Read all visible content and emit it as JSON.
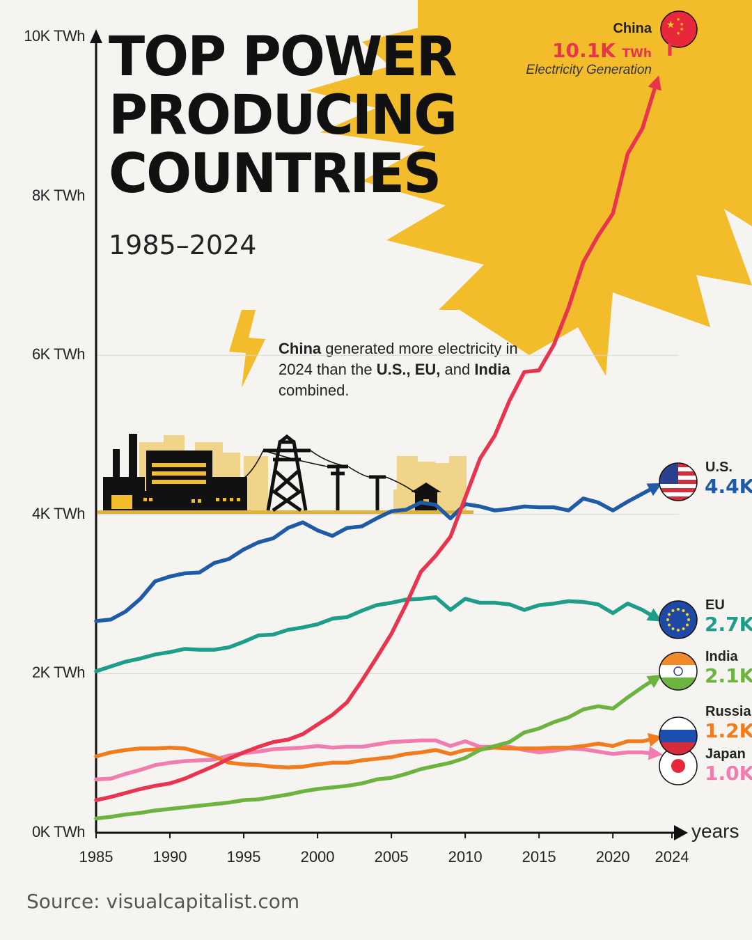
{
  "title_lines": [
    "TOP POWER",
    "PRODUCING",
    "COUNTRIES"
  ],
  "subtitle": "1985–2024",
  "annotation": {
    "bold1": "China",
    "text1": " generated more electricity in 2024 than the ",
    "bold2": "U.S., EU,",
    "text2": " and ",
    "bold3": "India",
    "text3": " combined."
  },
  "x_axis_label": "years",
  "source": "Source: visualcapitalist.com",
  "china_callout": {
    "name": "China",
    "value": "10.1K",
    "unit": "TWh",
    "caption": "Electricity Generation"
  },
  "colors": {
    "China": "#e8344e",
    "U.S.": "#1f5aa6",
    "EU": "#1e9e8a",
    "India": "#6db33f",
    "Russia": "#f07c1e",
    "Japan": "#f07cb0",
    "sun": "#f2bc2a"
  },
  "chart_data": {
    "type": "line",
    "xlabel": "years",
    "ylabel": "",
    "xlim": [
      1985,
      2024
    ],
    "ylim": [
      0,
      10000
    ],
    "y_ticks": [
      "0K TWh",
      "2K TWh",
      "4K TWh",
      "6K TWh",
      "8K TWh",
      "10K TWh"
    ],
    "y_tick_values": [
      0,
      2000,
      4000,
      6000,
      8000,
      10000
    ],
    "x_ticks": [
      "1985",
      "1990",
      "1995",
      "2000",
      "2005",
      "2010",
      "2015",
      "2020",
      "2024"
    ],
    "x_tick_values": [
      1985,
      1990,
      1995,
      2000,
      2005,
      2010,
      2015,
      2020,
      2024
    ],
    "grid": "horizontal at 2K, 4K, 6K",
    "x": [
      1985,
      1986,
      1987,
      1988,
      1989,
      1990,
      1991,
      1992,
      1993,
      1994,
      1995,
      1996,
      1997,
      1998,
      1999,
      2000,
      2001,
      2002,
      2003,
      2004,
      2005,
      2006,
      2007,
      2008,
      2009,
      2010,
      2011,
      2012,
      2013,
      2014,
      2015,
      2016,
      2017,
      2018,
      2019,
      2020,
      2021,
      2022,
      2023
    ],
    "series": [
      {
        "name": "China",
        "end_label": "10.1K TWh",
        "values": [
          410,
          450,
          500,
          550,
          590,
          620,
          680,
          760,
          840,
          930,
          1010,
          1080,
          1140,
          1170,
          1240,
          1360,
          1480,
          1640,
          1910,
          2200,
          2500,
          2870,
          3280,
          3480,
          3720,
          4210,
          4700,
          4990,
          5430,
          5790,
          5810,
          6130,
          6600,
          7170,
          7500,
          7780,
          8530,
          8850,
          9450
        ]
      },
      {
        "name": "U.S.",
        "end_label": "4.4K",
        "values": [
          2660,
          2680,
          2780,
          2940,
          3160,
          3220,
          3260,
          3270,
          3390,
          3440,
          3560,
          3650,
          3700,
          3830,
          3900,
          3800,
          3730,
          3830,
          3850,
          3950,
          4040,
          4060,
          4150,
          4120,
          3950,
          4130,
          4100,
          4050,
          4070,
          4100,
          4090,
          4090,
          4050,
          4200,
          4150,
          4050,
          4160,
          4260,
          4360
        ]
      },
      {
        "name": "EU",
        "end_label": "2.7K",
        "values": [
          2030,
          2090,
          2150,
          2190,
          2240,
          2270,
          2310,
          2300,
          2300,
          2330,
          2400,
          2480,
          2490,
          2550,
          2580,
          2620,
          2690,
          2710,
          2790,
          2860,
          2890,
          2930,
          2940,
          2960,
          2800,
          2940,
          2890,
          2890,
          2870,
          2800,
          2860,
          2880,
          2910,
          2900,
          2870,
          2760,
          2880,
          2800,
          2690
        ]
      },
      {
        "name": "India",
        "end_label": "2.1K",
        "values": [
          180,
          200,
          230,
          250,
          280,
          300,
          320,
          340,
          360,
          380,
          410,
          420,
          450,
          480,
          520,
          550,
          570,
          590,
          620,
          670,
          690,
          740,
          800,
          840,
          880,
          940,
          1040,
          1090,
          1140,
          1260,
          1310,
          1390,
          1450,
          1550,
          1590,
          1560,
          1700,
          1830,
          1950
        ]
      },
      {
        "name": "Russia",
        "end_label": "1.2K",
        "values": [
          960,
          1010,
          1040,
          1060,
          1060,
          1070,
          1060,
          1010,
          960,
          880,
          860,
          850,
          830,
          820,
          830,
          860,
          880,
          880,
          910,
          930,
          950,
          990,
          1010,
          1040,
          990,
          1040,
          1050,
          1070,
          1060,
          1060,
          1060,
          1070,
          1070,
          1090,
          1120,
          1090,
          1150,
          1150,
          1190
        ]
      },
      {
        "name": "Japan",
        "end_label": "1.0K",
        "values": [
          670,
          680,
          740,
          790,
          850,
          880,
          900,
          910,
          920,
          970,
          1000,
          1020,
          1050,
          1060,
          1070,
          1090,
          1070,
          1080,
          1080,
          1110,
          1140,
          1150,
          1160,
          1160,
          1090,
          1150,
          1080,
          1080,
          1080,
          1040,
          1010,
          1030,
          1060,
          1050,
          1020,
          990,
          1010,
          1010,
          990
        ]
      }
    ]
  },
  "legend_labels": [
    {
      "name": "U.S.",
      "value": "4.4K"
    },
    {
      "name": "EU",
      "value": "2.7K"
    },
    {
      "name": "India",
      "value": "2.1K"
    },
    {
      "name": "Russia",
      "value": "1.2K"
    },
    {
      "name": "Japan",
      "value": "1.0K"
    }
  ]
}
